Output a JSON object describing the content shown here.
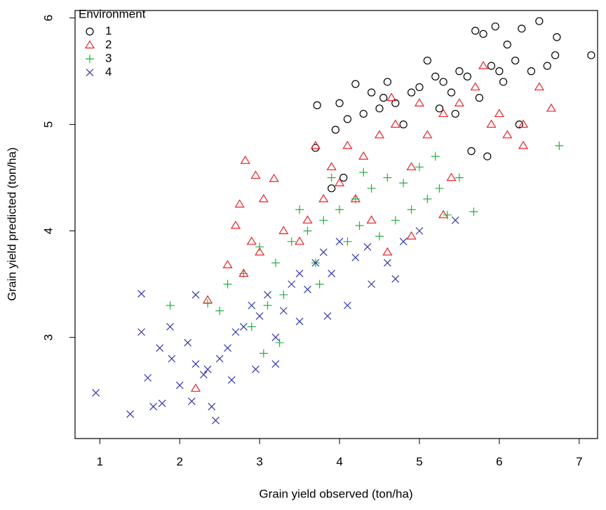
{
  "chart_data": {
    "type": "scatter",
    "x_label": "Grain yield observed (ton/ha)",
    "y_label": "Grain yield predicted (ton/ha)",
    "legend_title": "Environment",
    "legend_position": "top-left",
    "xlim": [
      0.69,
      7.23
    ],
    "ylim": [
      2.05,
      6.07
    ],
    "xticks": [
      1,
      2,
      3,
      4,
      5,
      6,
      7
    ],
    "yticks": [
      3,
      4,
      5,
      6
    ],
    "grid": false,
    "series": [
      {
        "name": "1",
        "color": "#000000",
        "marker": "circle",
        "x": [
          7.15,
          6.5,
          6.28,
          6.72,
          5.95,
          5.7,
          5.8,
          6.1,
          6.2,
          6.0,
          5.5,
          5.3,
          5.2,
          5.0,
          4.9,
          4.7,
          4.5,
          4.3,
          4.1,
          3.95,
          3.7,
          3.72,
          4.2,
          4.4,
          4.6,
          5.1,
          5.4,
          5.6,
          5.9,
          6.05,
          6.6,
          6.7,
          6.25,
          5.85,
          5.65,
          4.05,
          3.9,
          4.8,
          5.25,
          6.4,
          4.0,
          4.55,
          5.75,
          5.45
        ],
        "values": [
          5.65,
          5.97,
          5.9,
          5.82,
          5.92,
          5.88,
          5.85,
          5.75,
          5.6,
          5.5,
          5.5,
          5.4,
          5.45,
          5.35,
          5.3,
          5.2,
          5.15,
          5.1,
          5.05,
          4.95,
          4.78,
          5.18,
          5.38,
          5.3,
          5.4,
          5.6,
          5.3,
          5.45,
          5.55,
          5.4,
          5.55,
          5.65,
          5.0,
          4.7,
          4.75,
          4.5,
          4.4,
          5.0,
          5.15,
          5.5,
          5.2,
          5.25,
          5.25,
          5.1
        ]
      },
      {
        "name": "2",
        "color": "#e8222a",
        "marker": "triangle",
        "x": [
          2.82,
          2.95,
          3.18,
          2.75,
          3.05,
          2.7,
          2.9,
          2.6,
          2.8,
          3.0,
          2.35,
          2.2,
          3.3,
          3.6,
          3.5,
          3.8,
          3.9,
          4.1,
          4.3,
          4.5,
          4.7,
          4.9,
          5.1,
          5.3,
          5.5,
          5.7,
          5.9,
          6.1,
          6.3,
          6.65,
          6.3,
          6.5,
          5.3,
          4.9,
          4.6,
          4.4,
          4.2,
          5.8,
          4.0,
          3.7,
          5.0,
          4.65,
          6.0,
          5.4
        ],
        "values": [
          4.66,
          4.52,
          4.49,
          4.25,
          4.3,
          4.05,
          3.9,
          3.68,
          3.6,
          3.8,
          3.35,
          2.52,
          4.0,
          4.1,
          3.9,
          4.3,
          4.6,
          4.8,
          4.7,
          4.9,
          5.0,
          4.6,
          4.9,
          5.1,
          5.2,
          5.35,
          5.0,
          4.9,
          4.8,
          5.15,
          5.0,
          5.35,
          4.15,
          3.95,
          3.8,
          4.1,
          4.3,
          5.55,
          4.45,
          4.8,
          5.2,
          5.25,
          5.1,
          4.5
        ]
      },
      {
        "name": "3",
        "color": "#1fb33a",
        "marker": "plus",
        "x": [
          1.88,
          2.35,
          2.6,
          2.8,
          3.0,
          3.2,
          3.4,
          3.6,
          3.8,
          4.0,
          4.2,
          4.4,
          4.6,
          4.8,
          5.0,
          5.2,
          5.35,
          5.68,
          6.75,
          5.5,
          4.9,
          4.5,
          4.1,
          3.7,
          3.3,
          3.1,
          2.9,
          3.05,
          3.25,
          4.3,
          3.9,
          4.7,
          5.1,
          3.5,
          2.5,
          3.75,
          4.25,
          5.25
        ],
        "values": [
          3.3,
          3.32,
          3.5,
          3.6,
          3.85,
          3.7,
          3.9,
          4.0,
          4.1,
          4.2,
          4.3,
          4.4,
          4.5,
          4.45,
          4.6,
          4.7,
          4.15,
          4.18,
          4.8,
          4.5,
          4.2,
          3.95,
          3.9,
          3.7,
          3.4,
          3.3,
          3.1,
          2.85,
          2.95,
          4.55,
          4.5,
          4.1,
          4.3,
          4.2,
          3.25,
          3.5,
          4.05,
          4.4
        ]
      },
      {
        "name": "4",
        "color": "#3535b0",
        "marker": "cross",
        "x": [
          0.95,
          1.38,
          1.52,
          1.52,
          1.6,
          1.67,
          1.78,
          1.88,
          1.9,
          2.0,
          2.1,
          2.2,
          2.15,
          2.2,
          2.3,
          2.45,
          2.4,
          2.5,
          2.6,
          2.7,
          2.8,
          2.9,
          3.0,
          3.1,
          3.2,
          3.3,
          3.4,
          3.5,
          3.6,
          3.7,
          3.8,
          3.9,
          4.0,
          4.2,
          4.4,
          4.6,
          4.8,
          5.0,
          4.7,
          5.45,
          3.2,
          2.95,
          4.1,
          3.5,
          2.65,
          1.75,
          4.35,
          3.85,
          2.35
        ],
        "values": [
          2.48,
          2.28,
          3.41,
          3.05,
          2.62,
          2.35,
          2.38,
          3.1,
          2.8,
          2.55,
          2.95,
          2.75,
          2.4,
          3.4,
          2.65,
          2.22,
          2.35,
          2.8,
          2.9,
          3.05,
          3.1,
          3.3,
          3.2,
          3.4,
          3.0,
          3.25,
          3.5,
          3.6,
          3.45,
          3.7,
          3.8,
          3.6,
          3.9,
          3.75,
          3.5,
          3.7,
          3.9,
          4.0,
          3.55,
          4.1,
          2.75,
          2.7,
          3.3,
          3.15,
          2.6,
          2.9,
          3.85,
          3.2,
          2.7
        ]
      }
    ]
  }
}
